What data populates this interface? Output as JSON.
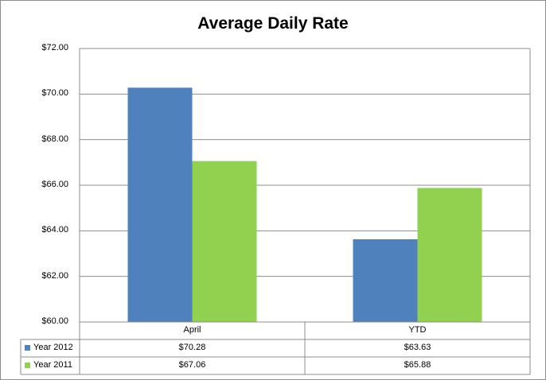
{
  "chart_data": {
    "type": "bar",
    "title": "Average Daily Rate",
    "categories": [
      "April",
      "YTD"
    ],
    "series": [
      {
        "name": "Year 2012",
        "values": [
          70.28,
          63.63
        ],
        "labels": [
          "$70.28",
          "$63.63"
        ],
        "color": "#4f81bd"
      },
      {
        "name": "Year 2011",
        "values": [
          67.06,
          65.88
        ],
        "labels": [
          "$67.06",
          "$65.88"
        ],
        "color": "#92d050"
      }
    ],
    "ylim": [
      60,
      72
    ],
    "yticks": [
      "$60.00",
      "$62.00",
      "$64.00",
      "$66.00",
      "$68.00",
      "$70.00",
      "$72.00"
    ],
    "grid": true,
    "legend": "data-table"
  }
}
